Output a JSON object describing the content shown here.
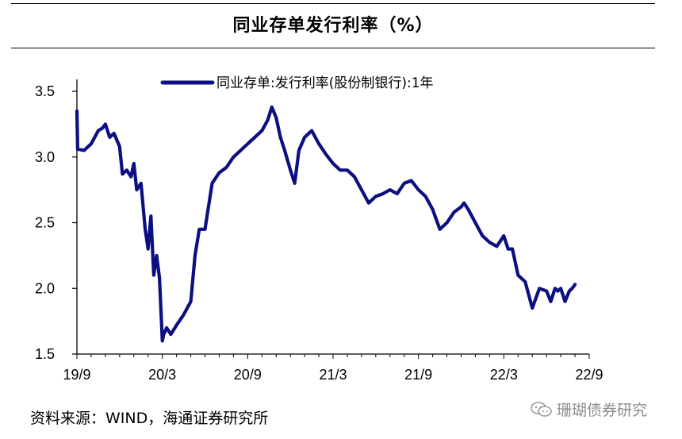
{
  "header": {
    "title": "同业存单发行利率（%）"
  },
  "footer": {
    "source": "资料来源：WIND，海通证券研究所",
    "watermark": "珊瑚债券研究"
  },
  "chart_data": {
    "type": "line",
    "title": "同业存单发行利率（%）",
    "xlabel": "",
    "ylabel": "",
    "ylim": [
      1.5,
      3.5
    ],
    "yticks": [
      1.5,
      2.0,
      2.5,
      3.0,
      3.5
    ],
    "ytick_labels": [
      "1.5",
      "2.0",
      "2.5",
      "3.0",
      "3.5"
    ],
    "xlim": [
      0,
      36
    ],
    "xticks": [
      0,
      6,
      12,
      18,
      24,
      30,
      36
    ],
    "xtick_labels": [
      "19/9",
      "20/3",
      "20/9",
      "21/3",
      "21/9",
      "22/3",
      "22/9"
    ],
    "grid": false,
    "legend_position": "top",
    "color": "#0b0f82",
    "series": [
      {
        "name": "同业存单:发行利率(股份制银行):1年",
        "x": [
          0,
          0.05,
          0.5,
          1.0,
          1.5,
          1.8,
          2.0,
          2.3,
          2.6,
          3.0,
          3.2,
          3.5,
          3.8,
          4.0,
          4.2,
          4.5,
          4.8,
          5.0,
          5.2,
          5.4,
          5.6,
          5.8,
          6.0,
          6.1,
          6.3,
          6.6,
          7.0,
          7.5,
          8.0,
          8.3,
          8.6,
          9.0,
          9.5,
          10.0,
          10.5,
          11.0,
          11.5,
          12.0,
          12.5,
          13.0,
          13.4,
          13.7,
          14.0,
          14.3,
          14.6,
          15.0,
          15.3,
          15.6,
          16.0,
          16.5,
          17.0,
          17.5,
          18.0,
          18.5,
          19.0,
          19.5,
          20.0,
          20.5,
          21.0,
          21.5,
          22.0,
          22.5,
          23.0,
          23.5,
          24.0,
          24.5,
          25.0,
          25.5,
          26.0,
          26.5,
          27.0,
          27.2,
          27.5,
          28.0,
          28.5,
          29.0,
          29.5,
          30.0,
          30.3,
          30.6,
          31.0,
          31.5,
          32.0,
          32.5,
          33.0,
          33.3,
          33.6,
          33.8,
          34.0,
          34.3,
          34.6,
          34.8,
          35.0
        ],
        "values": [
          3.35,
          3.06,
          3.05,
          3.1,
          3.2,
          3.22,
          3.25,
          3.15,
          3.18,
          3.08,
          2.87,
          2.9,
          2.85,
          2.95,
          2.75,
          2.8,
          2.45,
          2.3,
          2.55,
          2.1,
          2.25,
          2.08,
          1.6,
          1.65,
          1.7,
          1.65,
          1.72,
          1.8,
          1.9,
          2.25,
          2.45,
          2.45,
          2.8,
          2.88,
          2.92,
          3.0,
          3.05,
          3.1,
          3.15,
          3.2,
          3.28,
          3.38,
          3.3,
          3.15,
          3.05,
          2.9,
          2.8,
          3.05,
          3.15,
          3.2,
          3.1,
          3.02,
          2.95,
          2.9,
          2.9,
          2.85,
          2.75,
          2.65,
          2.7,
          2.72,
          2.75,
          2.72,
          2.8,
          2.82,
          2.75,
          2.7,
          2.6,
          2.45,
          2.5,
          2.58,
          2.62,
          2.65,
          2.6,
          2.5,
          2.4,
          2.35,
          2.32,
          2.4,
          2.3,
          2.3,
          2.1,
          2.05,
          1.85,
          2.0,
          1.98,
          1.9,
          2.0,
          1.98,
          2.0,
          1.9,
          1.98,
          2.0,
          2.03
        ]
      }
    ]
  }
}
